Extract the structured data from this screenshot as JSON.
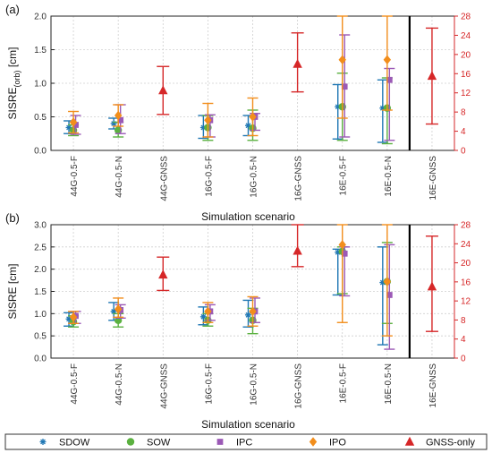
{
  "chart_data": [
    {
      "type": "scatter",
      "panel_label": "(a)",
      "ylabel_main": "SISRE",
      "ylabel_sub": "(orb)",
      "ylabel_unit": " [cm]",
      "xlabel": "Simulation scenario",
      "categories": [
        "44G-0.5-F",
        "44G-0.5-N",
        "44G-GNSS",
        "16G-0.5-F",
        "16G-0.5-N",
        "16G-GNSS",
        "16E-0.5-F",
        "16E-0.5-N",
        "16E-GNSS"
      ],
      "ylim": [
        0,
        2.0
      ],
      "yticks": [
        "0.0",
        "0.5",
        "1.0",
        "1.5",
        "2.0"
      ],
      "yticks_values": [
        0,
        0.5,
        1.0,
        1.5,
        2.0
      ],
      "y2lim": [
        0,
        28
      ],
      "y2ticks": [
        "0",
        "4",
        "8",
        "12",
        "16",
        "20",
        "24",
        "28"
      ],
      "y2ticks_values": [
        0,
        4,
        8,
        12,
        16,
        20,
        24,
        28
      ],
      "separator_after_index": 7,
      "series": [
        {
          "name": "SDOW",
          "axis": "left",
          "offset": -0.1,
          "points": [
            {
              "i": 0,
              "v": 0.34,
              "lo": 0.25,
              "hi": 0.44
            },
            {
              "i": 1,
              "v": 0.4,
              "lo": 0.32,
              "hi": 0.48
            },
            {
              "i": 3,
              "v": 0.34,
              "lo": 0.18,
              "hi": 0.52
            },
            {
              "i": 4,
              "v": 0.37,
              "lo": 0.22,
              "hi": 0.52
            },
            {
              "i": 6,
              "v": 0.65,
              "lo": 0.17,
              "hi": 0.98
            },
            {
              "i": 7,
              "v": 0.63,
              "lo": 0.12,
              "hi": 1.05
            }
          ]
        },
        {
          "name": "SOW",
          "axis": "left",
          "offset": 0.0,
          "points": [
            {
              "i": 0,
              "v": 0.3,
              "lo": 0.22,
              "hi": 0.38
            },
            {
              "i": 1,
              "v": 0.3,
              "lo": 0.2,
              "hi": 0.42
            },
            {
              "i": 3,
              "v": 0.34,
              "lo": 0.15,
              "hi": 0.52
            },
            {
              "i": 4,
              "v": 0.33,
              "lo": 0.15,
              "hi": 0.6
            },
            {
              "i": 6,
              "v": 0.65,
              "lo": 0.15,
              "hi": 1.15
            },
            {
              "i": 7,
              "v": 0.63,
              "lo": 0.1,
              "hi": 1.08
            }
          ]
        },
        {
          "name": "IPC",
          "axis": "left",
          "offset": 0.05,
          "points": [
            {
              "i": 0,
              "v": 0.38,
              "lo": 0.24,
              "hi": 0.52
            },
            {
              "i": 1,
              "v": 0.45,
              "lo": 0.25,
              "hi": 0.68
            },
            {
              "i": 3,
              "v": 0.45,
              "lo": 0.2,
              "hi": 0.53
            },
            {
              "i": 4,
              "v": 0.5,
              "lo": 0.3,
              "hi": 0.55
            },
            {
              "i": 6,
              "v": 0.95,
              "lo": 0.2,
              "hi": 1.72
            },
            {
              "i": 7,
              "v": 1.05,
              "lo": 0.15,
              "hi": 1.22
            }
          ]
        },
        {
          "name": "IPO",
          "axis": "left",
          "offset": 0.0,
          "points": [
            {
              "i": 0,
              "v": 0.42,
              "lo": 0.26,
              "hi": 0.58
            },
            {
              "i": 1,
              "v": 0.52,
              "lo": 0.36,
              "hi": 0.68
            },
            {
              "i": 3,
              "v": 0.45,
              "lo": 0.2,
              "hi": 0.7
            },
            {
              "i": 4,
              "v": 0.5,
              "lo": 0.22,
              "hi": 0.78
            },
            {
              "i": 6,
              "v": 1.35,
              "lo": 0.48,
              "hi": 2.0
            },
            {
              "i": 7,
              "v": 1.35,
              "lo": 0.6,
              "hi": 2.0
            }
          ]
        },
        {
          "name": "GNSS-only",
          "axis": "right",
          "offset": 0.0,
          "points": [
            {
              "i": 2,
              "v": 12.5,
              "lo": 7.5,
              "hi": 17.5
            },
            {
              "i": 5,
              "v": 18.0,
              "lo": 12.2,
              "hi": 24.5
            },
            {
              "i": 8,
              "v": 15.5,
              "lo": 5.5,
              "hi": 25.5
            }
          ]
        }
      ]
    },
    {
      "type": "scatter",
      "panel_label": "(b)",
      "ylabel_main": "SISRE [cm]",
      "ylabel_sub": "",
      "ylabel_unit": "",
      "xlabel": "Simulation scenario",
      "categories": [
        "44G-0.5-F",
        "44G-0.5-N",
        "44G-GNSS",
        "16G-0.5-F",
        "16G-0.5-N",
        "16G-GNSS",
        "16E-0.5-F",
        "16E-0.5-N",
        "16E-GNSS"
      ],
      "ylim": [
        0,
        3.0
      ],
      "yticks": [
        "0.0",
        "0.5",
        "1.0",
        "1.5",
        "2.0",
        "2.5",
        "3.0"
      ],
      "yticks_values": [
        0,
        0.5,
        1.0,
        1.5,
        2.0,
        2.5,
        3.0
      ],
      "y2lim": [
        0,
        28
      ],
      "y2ticks": [
        "0",
        "4",
        "8",
        "12",
        "16",
        "20",
        "24",
        "28"
      ],
      "y2ticks_values": [
        0,
        4,
        8,
        12,
        16,
        20,
        24,
        28
      ],
      "separator_after_index": 7,
      "series": [
        {
          "name": "SDOW",
          "axis": "left",
          "offset": -0.1,
          "points": [
            {
              "i": 0,
              "v": 0.88,
              "lo": 0.72,
              "hi": 1.02
            },
            {
              "i": 1,
              "v": 1.05,
              "lo": 0.85,
              "hi": 1.25
            },
            {
              "i": 3,
              "v": 0.93,
              "lo": 0.75,
              "hi": 1.15
            },
            {
              "i": 4,
              "v": 0.97,
              "lo": 0.7,
              "hi": 1.3
            },
            {
              "i": 6,
              "v": 2.38,
              "lo": 1.42,
              "hi": 2.45
            },
            {
              "i": 7,
              "v": 1.7,
              "lo": 0.3,
              "hi": 2.5
            }
          ]
        },
        {
          "name": "SOW",
          "axis": "left",
          "offset": 0.0,
          "points": [
            {
              "i": 0,
              "v": 0.82,
              "lo": 0.7,
              "hi": 0.95
            },
            {
              "i": 1,
              "v": 0.85,
              "lo": 0.7,
              "hi": 1.0
            },
            {
              "i": 3,
              "v": 0.85,
              "lo": 0.72,
              "hi": 1.0
            },
            {
              "i": 4,
              "v": 0.85,
              "lo": 0.55,
              "hi": 1.12
            },
            {
              "i": 6,
              "v": 2.4,
              "lo": 1.45,
              "hi": 2.5
            },
            {
              "i": 7,
              "v": 1.72,
              "lo": 0.78,
              "hi": 2.6
            }
          ]
        },
        {
          "name": "IPC",
          "axis": "left",
          "offset": 0.05,
          "points": [
            {
              "i": 0,
              "v": 0.95,
              "lo": 0.78,
              "hi": 1.05
            },
            {
              "i": 1,
              "v": 1.08,
              "lo": 0.9,
              "hi": 1.2
            },
            {
              "i": 3,
              "v": 1.05,
              "lo": 0.85,
              "hi": 1.2
            },
            {
              "i": 4,
              "v": 1.05,
              "lo": 0.8,
              "hi": 1.35
            },
            {
              "i": 6,
              "v": 2.35,
              "lo": 1.4,
              "hi": 2.5
            },
            {
              "i": 7,
              "v": 1.42,
              "lo": 0.2,
              "hi": 2.55
            }
          ]
        },
        {
          "name": "IPO",
          "axis": "left",
          "offset": 0.0,
          "points": [
            {
              "i": 0,
              "v": 0.92,
              "lo": 0.78,
              "hi": 1.05
            },
            {
              "i": 1,
              "v": 1.1,
              "lo": 0.92,
              "hi": 1.35
            },
            {
              "i": 3,
              "v": 1.05,
              "lo": 0.8,
              "hi": 1.25
            },
            {
              "i": 4,
              "v": 1.05,
              "lo": 0.72,
              "hi": 1.38
            },
            {
              "i": 6,
              "v": 2.55,
              "lo": 0.8,
              "hi": 3.0
            },
            {
              "i": 7,
              "v": 1.72,
              "lo": 0.5,
              "hi": 3.0
            }
          ]
        },
        {
          "name": "GNSS-only",
          "axis": "right",
          "offset": 0.0,
          "points": [
            {
              "i": 2,
              "v": 17.5,
              "lo": 14.2,
              "hi": 21.2
            },
            {
              "i": 5,
              "v": 22.5,
              "lo": 19.2,
              "hi": 28.0
            },
            {
              "i": 8,
              "v": 15.0,
              "lo": 5.6,
              "hi": 25.6
            }
          ]
        }
      ]
    }
  ],
  "legend": {
    "placement": "bottom",
    "items": [
      {
        "name": "SDOW",
        "marker": "asterisk",
        "color": "#1f77b4"
      },
      {
        "name": "SOW",
        "marker": "circle",
        "color": "#5bb140"
      },
      {
        "name": "IPC",
        "marker": "square",
        "color": "#9b59b6"
      },
      {
        "name": "IPO",
        "marker": "diamond",
        "color": "#f28e1c"
      },
      {
        "name": "GNSS-only",
        "marker": "triangle",
        "color": "#d62728"
      }
    ]
  },
  "colors": {
    "SDOW": "#1f77b4",
    "SOW": "#5bb140",
    "IPC": "#9b59b6",
    "IPO": "#f28e1c",
    "GNSS-only": "#d62728",
    "right_axis": "#d62728"
  }
}
